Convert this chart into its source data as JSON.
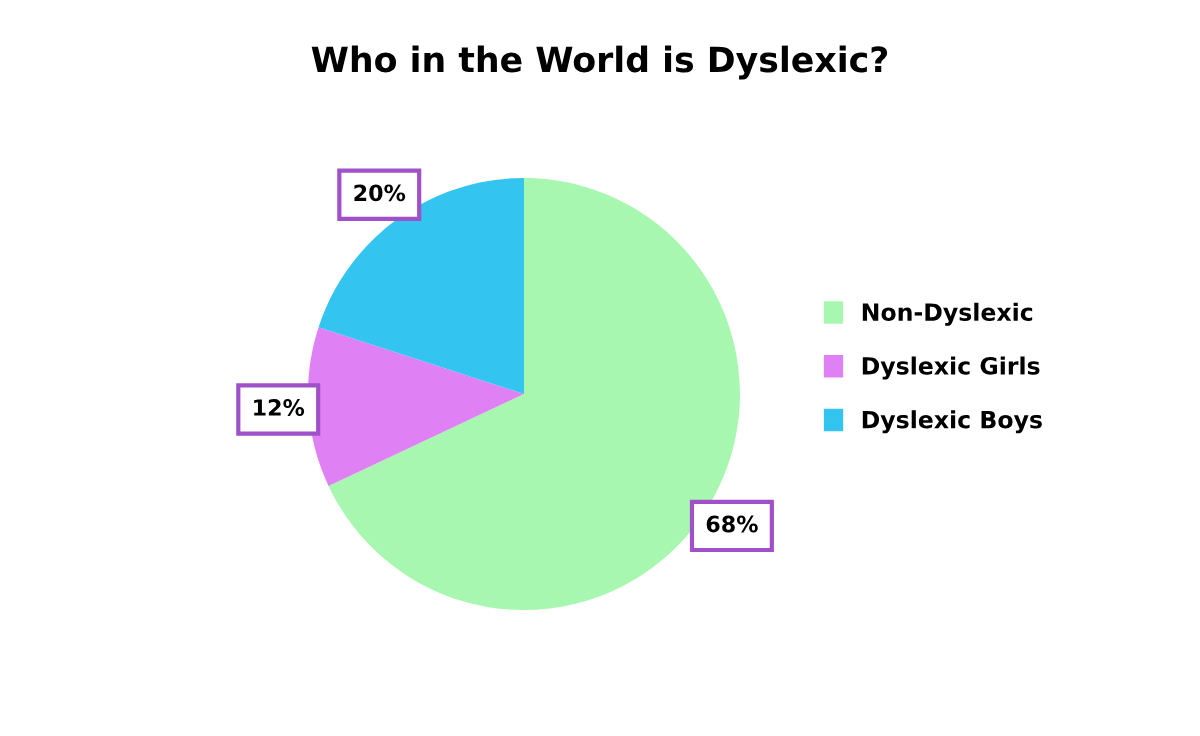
{
  "chart_data": {
    "type": "pie",
    "title": "Who in the World is Dyslexic?",
    "categories": [
      "Non-Dyslexic",
      "Dyslexic Girls",
      "Dyslexic Boys"
    ],
    "values": [
      68,
      12,
      20
    ],
    "colors": [
      "#a8f7b0",
      "#df80f4",
      "#33c4ef"
    ],
    "value_labels": [
      "68%",
      "12%",
      "20%"
    ],
    "legend": "right"
  }
}
